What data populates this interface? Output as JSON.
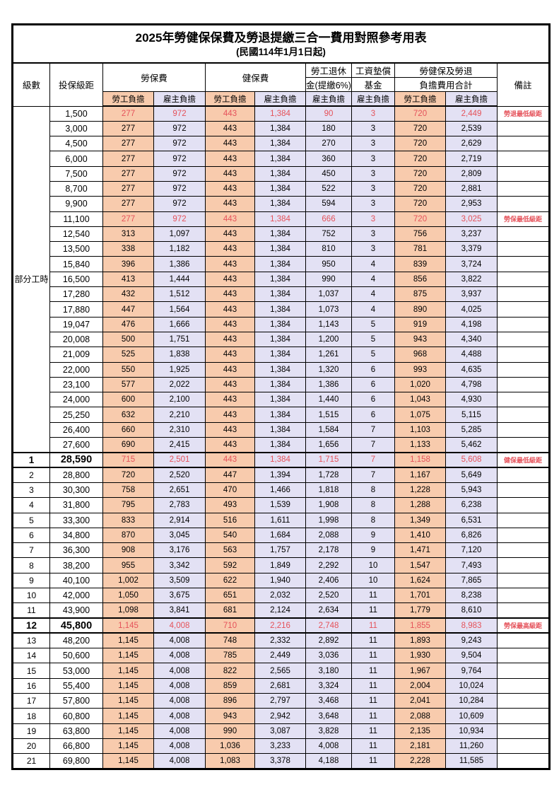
{
  "title": "2025年勞健保保費及勞退提繳三合一費用對照參考用表",
  "subtitle": "(民國114年1月1日起)",
  "colors": {
    "employee_bg": "#F8CBAD",
    "employer_bg": "#E3E1F4",
    "highlight_text": "#E5525A"
  },
  "header": {
    "level": "級數",
    "bracket": "投保級距",
    "labor_insurance": "勞保費",
    "health_insurance": "健保費",
    "pension_line1": "勞工退休",
    "pension_line2": "金(提繳6%)",
    "wage_fund_line1": "工資墊償",
    "wage_fund_line2": "基金",
    "total_line1": "勞健保及勞退",
    "total_line2": "負擔費用合計",
    "employee_share": "勞工負擔",
    "employer_share": "雇主負擔",
    "remark": "備註"
  },
  "part_time": {
    "label": "部分工時",
    "span": 23
  },
  "value_columns": [
    "li_emp",
    "li_er",
    "hi_emp",
    "hi_er",
    "pension",
    "fund",
    "tot_emp",
    "tot_er"
  ],
  "column_classes": {
    "li_emp": "emp",
    "li_er": "er",
    "hi_emp": "emp",
    "hi_er": "er",
    "pension": "er",
    "fund": "er",
    "tot_emp": "emp",
    "tot_er": "er"
  },
  "rows": [
    {
      "level": "",
      "bracket": "1,500",
      "li_emp": "277",
      "li_er": "972",
      "hi_emp": "443",
      "hi_er": "1,384",
      "pension": "90",
      "fund": "3",
      "tot_emp": "720",
      "tot_er": "2,449",
      "remark": "勞退最低級距",
      "red": true,
      "bold": false,
      "thick": false
    },
    {
      "level": "",
      "bracket": "3,000",
      "li_emp": "277",
      "li_er": "972",
      "hi_emp": "443",
      "hi_er": "1,384",
      "pension": "180",
      "fund": "3",
      "tot_emp": "720",
      "tot_er": "2,539",
      "remark": "",
      "red": false,
      "bold": false,
      "thick": false
    },
    {
      "level": "",
      "bracket": "4,500",
      "li_emp": "277",
      "li_er": "972",
      "hi_emp": "443",
      "hi_er": "1,384",
      "pension": "270",
      "fund": "3",
      "tot_emp": "720",
      "tot_er": "2,629",
      "remark": "",
      "red": false,
      "bold": false,
      "thick": false
    },
    {
      "level": "",
      "bracket": "6,000",
      "li_emp": "277",
      "li_er": "972",
      "hi_emp": "443",
      "hi_er": "1,384",
      "pension": "360",
      "fund": "3",
      "tot_emp": "720",
      "tot_er": "2,719",
      "remark": "",
      "red": false,
      "bold": false,
      "thick": false
    },
    {
      "level": "",
      "bracket": "7,500",
      "li_emp": "277",
      "li_er": "972",
      "hi_emp": "443",
      "hi_er": "1,384",
      "pension": "450",
      "fund": "3",
      "tot_emp": "720",
      "tot_er": "2,809",
      "remark": "",
      "red": false,
      "bold": false,
      "thick": false
    },
    {
      "level": "",
      "bracket": "8,700",
      "li_emp": "277",
      "li_er": "972",
      "hi_emp": "443",
      "hi_er": "1,384",
      "pension": "522",
      "fund": "3",
      "tot_emp": "720",
      "tot_er": "2,881",
      "remark": "",
      "red": false,
      "bold": false,
      "thick": false
    },
    {
      "level": "",
      "bracket": "9,900",
      "li_emp": "277",
      "li_er": "972",
      "hi_emp": "443",
      "hi_er": "1,384",
      "pension": "594",
      "fund": "3",
      "tot_emp": "720",
      "tot_er": "2,953",
      "remark": "",
      "red": false,
      "bold": false,
      "thick": false
    },
    {
      "level": "",
      "bracket": "11,100",
      "li_emp": "277",
      "li_er": "972",
      "hi_emp": "443",
      "hi_er": "1,384",
      "pension": "666",
      "fund": "3",
      "tot_emp": "720",
      "tot_er": "3,025",
      "remark": "勞保最低級距",
      "red": true,
      "bold": false,
      "thick": false
    },
    {
      "level": "",
      "bracket": "12,540",
      "li_emp": "313",
      "li_er": "1,097",
      "hi_emp": "443",
      "hi_er": "1,384",
      "pension": "752",
      "fund": "3",
      "tot_emp": "756",
      "tot_er": "3,237",
      "remark": "",
      "red": false,
      "bold": false,
      "thick": false
    },
    {
      "level": "",
      "bracket": "13,500",
      "li_emp": "338",
      "li_er": "1,182",
      "hi_emp": "443",
      "hi_er": "1,384",
      "pension": "810",
      "fund": "3",
      "tot_emp": "781",
      "tot_er": "3,379",
      "remark": "",
      "red": false,
      "bold": false,
      "thick": false
    },
    {
      "level": "",
      "bracket": "15,840",
      "li_emp": "396",
      "li_er": "1,386",
      "hi_emp": "443",
      "hi_er": "1,384",
      "pension": "950",
      "fund": "4",
      "tot_emp": "839",
      "tot_er": "3,724",
      "remark": "",
      "red": false,
      "bold": false,
      "thick": false
    },
    {
      "level": "",
      "bracket": "16,500",
      "li_emp": "413",
      "li_er": "1,444",
      "hi_emp": "443",
      "hi_er": "1,384",
      "pension": "990",
      "fund": "4",
      "tot_emp": "856",
      "tot_er": "3,822",
      "remark": "",
      "red": false,
      "bold": false,
      "thick": false
    },
    {
      "level": "",
      "bracket": "17,280",
      "li_emp": "432",
      "li_er": "1,512",
      "hi_emp": "443",
      "hi_er": "1,384",
      "pension": "1,037",
      "fund": "4",
      "tot_emp": "875",
      "tot_er": "3,937",
      "remark": "",
      "red": false,
      "bold": false,
      "thick": false
    },
    {
      "level": "",
      "bracket": "17,880",
      "li_emp": "447",
      "li_er": "1,564",
      "hi_emp": "443",
      "hi_er": "1,384",
      "pension": "1,073",
      "fund": "4",
      "tot_emp": "890",
      "tot_er": "4,025",
      "remark": "",
      "red": false,
      "bold": false,
      "thick": false
    },
    {
      "level": "",
      "bracket": "19,047",
      "li_emp": "476",
      "li_er": "1,666",
      "hi_emp": "443",
      "hi_er": "1,384",
      "pension": "1,143",
      "fund": "5",
      "tot_emp": "919",
      "tot_er": "4,198",
      "remark": "",
      "red": false,
      "bold": false,
      "thick": false
    },
    {
      "level": "",
      "bracket": "20,008",
      "li_emp": "500",
      "li_er": "1,751",
      "hi_emp": "443",
      "hi_er": "1,384",
      "pension": "1,200",
      "fund": "5",
      "tot_emp": "943",
      "tot_er": "4,340",
      "remark": "",
      "red": false,
      "bold": false,
      "thick": false
    },
    {
      "level": "",
      "bracket": "21,009",
      "li_emp": "525",
      "li_er": "1,838",
      "hi_emp": "443",
      "hi_er": "1,384",
      "pension": "1,261",
      "fund": "5",
      "tot_emp": "968",
      "tot_er": "4,488",
      "remark": "",
      "red": false,
      "bold": false,
      "thick": false
    },
    {
      "level": "",
      "bracket": "22,000",
      "li_emp": "550",
      "li_er": "1,925",
      "hi_emp": "443",
      "hi_er": "1,384",
      "pension": "1,320",
      "fund": "6",
      "tot_emp": "993",
      "tot_er": "4,635",
      "remark": "",
      "red": false,
      "bold": false,
      "thick": false
    },
    {
      "level": "",
      "bracket": "23,100",
      "li_emp": "577",
      "li_er": "2,022",
      "hi_emp": "443",
      "hi_er": "1,384",
      "pension": "1,386",
      "fund": "6",
      "tot_emp": "1,020",
      "tot_er": "4,798",
      "remark": "",
      "red": false,
      "bold": false,
      "thick": false
    },
    {
      "level": "",
      "bracket": "24,000",
      "li_emp": "600",
      "li_er": "2,100",
      "hi_emp": "443",
      "hi_er": "1,384",
      "pension": "1,440",
      "fund": "6",
      "tot_emp": "1,043",
      "tot_er": "4,930",
      "remark": "",
      "red": false,
      "bold": false,
      "thick": false
    },
    {
      "level": "",
      "bracket": "25,250",
      "li_emp": "632",
      "li_er": "2,210",
      "hi_emp": "443",
      "hi_er": "1,384",
      "pension": "1,515",
      "fund": "6",
      "tot_emp": "1,075",
      "tot_er": "5,115",
      "remark": "",
      "red": false,
      "bold": false,
      "thick": false
    },
    {
      "level": "",
      "bracket": "26,400",
      "li_emp": "660",
      "li_er": "2,310",
      "hi_emp": "443",
      "hi_er": "1,384",
      "pension": "1,584",
      "fund": "7",
      "tot_emp": "1,103",
      "tot_er": "5,285",
      "remark": "",
      "red": false,
      "bold": false,
      "thick": false
    },
    {
      "level": "",
      "bracket": "27,600",
      "li_emp": "690",
      "li_er": "2,415",
      "hi_emp": "443",
      "hi_er": "1,384",
      "pension": "1,656",
      "fund": "7",
      "tot_emp": "1,133",
      "tot_er": "5,462",
      "remark": "",
      "red": false,
      "bold": false,
      "thick": false
    },
    {
      "level": "1",
      "bracket": "28,590",
      "li_emp": "715",
      "li_er": "2,501",
      "hi_emp": "443",
      "hi_er": "1,384",
      "pension": "1,715",
      "fund": "7",
      "tot_emp": "1,158",
      "tot_er": "5,608",
      "remark": "健保最低級距",
      "red": true,
      "bold": true,
      "thick": true
    },
    {
      "level": "2",
      "bracket": "28,800",
      "li_emp": "720",
      "li_er": "2,520",
      "hi_emp": "447",
      "hi_er": "1,394",
      "pension": "1,728",
      "fund": "7",
      "tot_emp": "1,167",
      "tot_er": "5,649",
      "remark": "",
      "red": false,
      "bold": false,
      "thick": false
    },
    {
      "level": "3",
      "bracket": "30,300",
      "li_emp": "758",
      "li_er": "2,651",
      "hi_emp": "470",
      "hi_er": "1,466",
      "pension": "1,818",
      "fund": "8",
      "tot_emp": "1,228",
      "tot_er": "5,943",
      "remark": "",
      "red": false,
      "bold": false,
      "thick": false
    },
    {
      "level": "4",
      "bracket": "31,800",
      "li_emp": "795",
      "li_er": "2,783",
      "hi_emp": "493",
      "hi_er": "1,539",
      "pension": "1,908",
      "fund": "8",
      "tot_emp": "1,288",
      "tot_er": "6,238",
      "remark": "",
      "red": false,
      "bold": false,
      "thick": false
    },
    {
      "level": "5",
      "bracket": "33,300",
      "li_emp": "833",
      "li_er": "2,914",
      "hi_emp": "516",
      "hi_er": "1,611",
      "pension": "1,998",
      "fund": "8",
      "tot_emp": "1,349",
      "tot_er": "6,531",
      "remark": "",
      "red": false,
      "bold": false,
      "thick": false
    },
    {
      "level": "6",
      "bracket": "34,800",
      "li_emp": "870",
      "li_er": "3,045",
      "hi_emp": "540",
      "hi_er": "1,684",
      "pension": "2,088",
      "fund": "9",
      "tot_emp": "1,410",
      "tot_er": "6,826",
      "remark": "",
      "red": false,
      "bold": false,
      "thick": false
    },
    {
      "level": "7",
      "bracket": "36,300",
      "li_emp": "908",
      "li_er": "3,176",
      "hi_emp": "563",
      "hi_er": "1,757",
      "pension": "2,178",
      "fund": "9",
      "tot_emp": "1,471",
      "tot_er": "7,120",
      "remark": "",
      "red": false,
      "bold": false,
      "thick": false
    },
    {
      "level": "8",
      "bracket": "38,200",
      "li_emp": "955",
      "li_er": "3,342",
      "hi_emp": "592",
      "hi_er": "1,849",
      "pension": "2,292",
      "fund": "10",
      "tot_emp": "1,547",
      "tot_er": "7,493",
      "remark": "",
      "red": false,
      "bold": false,
      "thick": false
    },
    {
      "level": "9",
      "bracket": "40,100",
      "li_emp": "1,002",
      "li_er": "3,509",
      "hi_emp": "622",
      "hi_er": "1,940",
      "pension": "2,406",
      "fund": "10",
      "tot_emp": "1,624",
      "tot_er": "7,865",
      "remark": "",
      "red": false,
      "bold": false,
      "thick": false
    },
    {
      "level": "10",
      "bracket": "42,000",
      "li_emp": "1,050",
      "li_er": "3,675",
      "hi_emp": "651",
      "hi_er": "2,032",
      "pension": "2,520",
      "fund": "11",
      "tot_emp": "1,701",
      "tot_er": "8,238",
      "remark": "",
      "red": false,
      "bold": false,
      "thick": false
    },
    {
      "level": "11",
      "bracket": "43,900",
      "li_emp": "1,098",
      "li_er": "3,841",
      "hi_emp": "681",
      "hi_er": "2,124",
      "pension": "2,634",
      "fund": "11",
      "tot_emp": "1,779",
      "tot_er": "8,610",
      "remark": "",
      "red": false,
      "bold": false,
      "thick": false
    },
    {
      "level": "12",
      "bracket": "45,800",
      "li_emp": "1,145",
      "li_er": "4,008",
      "hi_emp": "710",
      "hi_er": "2,216",
      "pension": "2,748",
      "fund": "11",
      "tot_emp": "1,855",
      "tot_er": "8,983",
      "remark": "勞保最高級距",
      "red": true,
      "bold": true,
      "thick": true
    },
    {
      "level": "13",
      "bracket": "48,200",
      "li_emp": "1,145",
      "li_er": "4,008",
      "hi_emp": "748",
      "hi_er": "2,332",
      "pension": "2,892",
      "fund": "11",
      "tot_emp": "1,893",
      "tot_er": "9,243",
      "remark": "",
      "red": false,
      "bold": false,
      "thick": false
    },
    {
      "level": "14",
      "bracket": "50,600",
      "li_emp": "1,145",
      "li_er": "4,008",
      "hi_emp": "785",
      "hi_er": "2,449",
      "pension": "3,036",
      "fund": "11",
      "tot_emp": "1,930",
      "tot_er": "9,504",
      "remark": "",
      "red": false,
      "bold": false,
      "thick": false
    },
    {
      "level": "15",
      "bracket": "53,000",
      "li_emp": "1,145",
      "li_er": "4,008",
      "hi_emp": "822",
      "hi_er": "2,565",
      "pension": "3,180",
      "fund": "11",
      "tot_emp": "1,967",
      "tot_er": "9,764",
      "remark": "",
      "red": false,
      "bold": false,
      "thick": false
    },
    {
      "level": "16",
      "bracket": "55,400",
      "li_emp": "1,145",
      "li_er": "4,008",
      "hi_emp": "859",
      "hi_er": "2,681",
      "pension": "3,324",
      "fund": "11",
      "tot_emp": "2,004",
      "tot_er": "10,024",
      "remark": "",
      "red": false,
      "bold": false,
      "thick": false
    },
    {
      "level": "17",
      "bracket": "57,800",
      "li_emp": "1,145",
      "li_er": "4,008",
      "hi_emp": "896",
      "hi_er": "2,797",
      "pension": "3,468",
      "fund": "11",
      "tot_emp": "2,041",
      "tot_er": "10,284",
      "remark": "",
      "red": false,
      "bold": false,
      "thick": false
    },
    {
      "level": "18",
      "bracket": "60,800",
      "li_emp": "1,145",
      "li_er": "4,008",
      "hi_emp": "943",
      "hi_er": "2,942",
      "pension": "3,648",
      "fund": "11",
      "tot_emp": "2,088",
      "tot_er": "10,609",
      "remark": "",
      "red": false,
      "bold": false,
      "thick": false
    },
    {
      "level": "19",
      "bracket": "63,800",
      "li_emp": "1,145",
      "li_er": "4,008",
      "hi_emp": "990",
      "hi_er": "3,087",
      "pension": "3,828",
      "fund": "11",
      "tot_emp": "2,135",
      "tot_er": "10,934",
      "remark": "",
      "red": false,
      "bold": false,
      "thick": false
    },
    {
      "level": "20",
      "bracket": "66,800",
      "li_emp": "1,145",
      "li_er": "4,008",
      "hi_emp": "1,036",
      "hi_er": "3,233",
      "pension": "4,008",
      "fund": "11",
      "tot_emp": "2,181",
      "tot_er": "11,260",
      "remark": "",
      "red": false,
      "bold": false,
      "thick": false
    },
    {
      "level": "21",
      "bracket": "69,800",
      "li_emp": "1,145",
      "li_er": "4,008",
      "hi_emp": "1,083",
      "hi_er": "3,378",
      "pension": "4,188",
      "fund": "11",
      "tot_emp": "2,228",
      "tot_er": "11,585",
      "remark": "",
      "red": false,
      "bold": false,
      "thick": false
    }
  ]
}
